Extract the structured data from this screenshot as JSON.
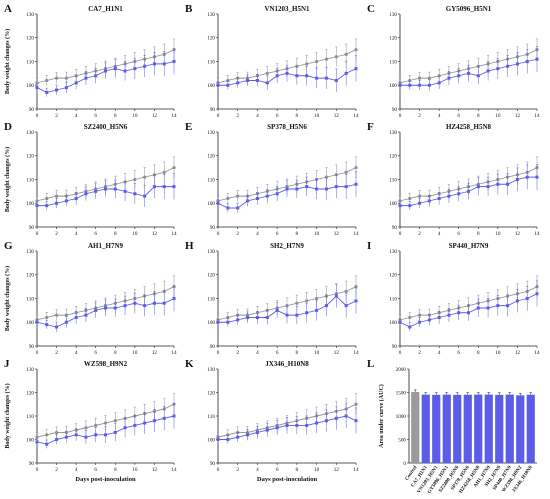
{
  "figure": {
    "days": [
      0,
      1,
      2,
      3,
      4,
      5,
      6,
      7,
      8,
      9,
      10,
      11,
      12,
      13,
      14
    ],
    "xticks": [
      0,
      2,
      4,
      6,
      8,
      10,
      12,
      14
    ],
    "yticks": [
      90,
      100,
      110,
      120,
      130
    ],
    "ylim": [
      90,
      130
    ],
    "xlim": [
      0,
      14
    ],
    "colors": {
      "control": "#8f8f8f",
      "virus": "#5b5ce8"
    },
    "xlabel": "Days post-inoculation",
    "ylabel": "Body weight changes (%)",
    "control_values": [
      101,
      102,
      103,
      103,
      104,
      105,
      106,
      107,
      108,
      109,
      110,
      111,
      112,
      113,
      115
    ]
  },
  "chart_data": [
    {
      "type": "line",
      "letter": "A",
      "title": "CA7_H1N1",
      "series": [
        {
          "role": "control",
          "values": [
            101,
            102,
            103,
            103,
            104,
            105,
            106,
            107,
            108,
            109,
            110,
            111,
            112,
            113,
            115
          ]
        },
        {
          "role": "virus",
          "values": [
            99,
            97,
            98,
            99,
            101,
            103,
            104,
            106,
            107,
            106,
            107,
            108,
            109,
            109,
            110
          ]
        }
      ]
    },
    {
      "type": "line",
      "letter": "B",
      "title": "VN1203_H5N1",
      "series": [
        {
          "role": "control",
          "values": [
            101,
            102,
            103,
            103,
            104,
            105,
            106,
            107,
            108,
            109,
            110,
            111,
            112,
            113,
            115
          ]
        },
        {
          "role": "virus",
          "values": [
            100,
            100,
            101,
            102,
            102,
            101,
            104,
            105,
            104,
            104,
            103,
            103,
            102,
            105,
            107
          ]
        }
      ]
    },
    {
      "type": "line",
      "letter": "C",
      "title": "GY5096_H5N1",
      "series": [
        {
          "role": "control",
          "values": [
            101,
            102,
            103,
            103,
            104,
            105,
            106,
            107,
            108,
            109,
            110,
            111,
            112,
            113,
            115
          ]
        },
        {
          "role": "virus",
          "values": [
            100,
            100,
            100,
            100,
            101,
            103,
            104,
            105,
            104,
            106,
            107,
            108,
            109,
            110,
            111
          ]
        }
      ]
    },
    {
      "type": "line",
      "letter": "D",
      "title": "SZ2400_H5N6",
      "series": [
        {
          "role": "control",
          "values": [
            101,
            102,
            103,
            103,
            104,
            105,
            106,
            107,
            108,
            109,
            110,
            111,
            112,
            113,
            115
          ]
        },
        {
          "role": "virus",
          "values": [
            99,
            99,
            100,
            101,
            102,
            104,
            105,
            106,
            106,
            105,
            104,
            103,
            107,
            107,
            107
          ]
        }
      ]
    },
    {
      "type": "line",
      "letter": "E",
      "title": "SP378_H5N6",
      "series": [
        {
          "role": "control",
          "values": [
            101,
            102,
            103,
            103,
            104,
            105,
            106,
            107,
            108,
            109,
            110,
            111,
            112,
            113,
            115
          ]
        },
        {
          "role": "virus",
          "values": [
            100,
            98,
            98,
            101,
            102,
            103,
            104,
            106,
            106,
            107,
            106,
            106,
            107,
            107,
            108
          ]
        }
      ]
    },
    {
      "type": "line",
      "letter": "F",
      "title": "HZ4258_H5N8",
      "series": [
        {
          "role": "control",
          "values": [
            101,
            102,
            103,
            103,
            104,
            105,
            106,
            107,
            108,
            109,
            110,
            111,
            112,
            113,
            115
          ]
        },
        {
          "role": "virus",
          "values": [
            99,
            99,
            100,
            101,
            102,
            103,
            104,
            105,
            107,
            107,
            108,
            108,
            110,
            111,
            111
          ]
        }
      ]
    },
    {
      "type": "line",
      "letter": "G",
      "title": "AH1_H7N9",
      "series": [
        {
          "role": "control",
          "values": [
            101,
            102,
            103,
            103,
            104,
            105,
            106,
            107,
            108,
            109,
            110,
            111,
            112,
            113,
            115
          ]
        },
        {
          "role": "virus",
          "values": [
            100,
            99,
            98,
            100,
            102,
            103,
            105,
            106,
            106,
            107,
            108,
            107,
            108,
            108,
            110
          ]
        }
      ]
    },
    {
      "type": "line",
      "letter": "H",
      "title": "SH2_H7N9",
      "series": [
        {
          "role": "control",
          "values": [
            101,
            102,
            103,
            103,
            104,
            105,
            106,
            107,
            108,
            109,
            110,
            111,
            112,
            113,
            115
          ]
        },
        {
          "role": "virus",
          "values": [
            100,
            100,
            101,
            102,
            102,
            102,
            105,
            103,
            103,
            104,
            105,
            107,
            111,
            107,
            109
          ]
        }
      ]
    },
    {
      "type": "line",
      "letter": "I",
      "title": "SP440_H7N9",
      "series": [
        {
          "role": "control",
          "values": [
            101,
            102,
            103,
            103,
            104,
            105,
            106,
            107,
            108,
            109,
            110,
            111,
            112,
            113,
            115
          ]
        },
        {
          "role": "virus",
          "values": [
            100,
            98,
            100,
            101,
            102,
            103,
            104,
            104,
            106,
            106,
            107,
            107,
            109,
            110,
            112
          ]
        }
      ]
    },
    {
      "type": "line",
      "letter": "J",
      "title": "WZ598_H9N2",
      "series": [
        {
          "role": "control",
          "values": [
            101,
            102,
            103,
            103,
            104,
            105,
            106,
            107,
            108,
            109,
            110,
            111,
            112,
            113,
            115
          ]
        },
        {
          "role": "virus",
          "values": [
            99,
            98,
            100,
            101,
            102,
            101,
            102,
            102,
            103,
            105,
            106,
            107,
            108,
            109,
            110
          ]
        }
      ]
    },
    {
      "type": "line",
      "letter": "K",
      "title": "JX346_H10N8",
      "series": [
        {
          "role": "control",
          "values": [
            101,
            102,
            103,
            103,
            104,
            105,
            106,
            107,
            108,
            109,
            110,
            111,
            112,
            113,
            115
          ]
        },
        {
          "role": "virus",
          "values": [
            100,
            100,
            101,
            102,
            103,
            104,
            105,
            106,
            106,
            106,
            107,
            108,
            109,
            110,
            108
          ]
        }
      ]
    },
    {
      "type": "bar",
      "letter": "L",
      "title": "",
      "ylabel": "Area under curve (AUC)",
      "ylim": [
        0,
        2000
      ],
      "yticks": [
        0,
        500,
        1000,
        1500,
        2000
      ],
      "categories": [
        "Control",
        "CA7_H1N1",
        "VN1203_H5N1",
        "GY5096_H5N1",
        "SZ2400_H5N6",
        "SP378_H5N6",
        "HZ4258_H5N8",
        "AH1_H7N9",
        "SH2_H7N9",
        "SP440_H7N9",
        "WZ598_H9N2",
        "JX346_H10N8"
      ],
      "values": [
        1510,
        1455,
        1450,
        1455,
        1450,
        1452,
        1455,
        1455,
        1450,
        1455,
        1440,
        1452
      ],
      "colors": [
        "#9a9a9a",
        "#5b5ce8",
        "#5b5ce8",
        "#5b5ce8",
        "#5b5ce8",
        "#5b5ce8",
        "#5b5ce8",
        "#5b5ce8",
        "#5b5ce8",
        "#5b5ce8",
        "#5b5ce8",
        "#5b5ce8"
      ]
    }
  ]
}
